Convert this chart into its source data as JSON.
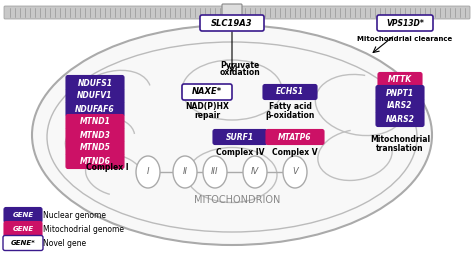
{
  "bg_color": "#ffffff",
  "membrane_color": "#c8c8c8",
  "mito_outline_color": "#aaaaaa",
  "mito_fill_color": "#f5f5f5",
  "cristae_color": "#c0c0c0",
  "nuclear_gene_color": "#3a1a8c",
  "mito_gene_color": "#cc1166",
  "novel_gene_border_color": "#3a1a8c",
  "novel_gene_fill_color": "#ffffff",
  "gene_text_color": "#ffffff",
  "novel_gene_text_color": "#000000",
  "label_text_color": "#000000",
  "title_text": "MITOCHONDRION",
  "slc_label": "SLC19A3",
  "vps_label": "VPS13D*",
  "vps_desc": "Mitochondrial clearance",
  "naxe_label": "NAXE*",
  "naxe_desc1": "NAD(P)HX",
  "naxe_desc2": "repair",
  "echs1_label": "ECHS1",
  "echs1_desc1": "Fatty acid",
  "echs1_desc2": "β-oxidation",
  "pyruvate_desc1": "Pyruvate",
  "pyruvate_desc2": "oxidation",
  "surf1_label": "SURF1",
  "surf1_desc": "Complex IV",
  "mtatp6_label": "MTATP6",
  "mtatp6_desc": "Complex V",
  "complexI_desc": "Complex I",
  "mito_trans_desc1": "Mitochondrial",
  "mito_trans_desc2": "translation",
  "nuclear_genes_left": [
    "NDUFS1",
    "NDUFV1",
    "NDUFAF6"
  ],
  "mito_genes_left": [
    "MTND1",
    "MTND3",
    "MTND5",
    "MTND6"
  ],
  "right_mito_genes": [
    "MTTK"
  ],
  "right_nuclear_genes": [
    "PNPT1",
    "IARS2",
    "NARS2"
  ],
  "legend_nuclear": "Nuclear genome",
  "legend_mito": "Mitochodrial genome",
  "legend_novel": "Novel gene",
  "roman_labels": [
    "I",
    "II",
    "III",
    "IV",
    "V"
  ]
}
